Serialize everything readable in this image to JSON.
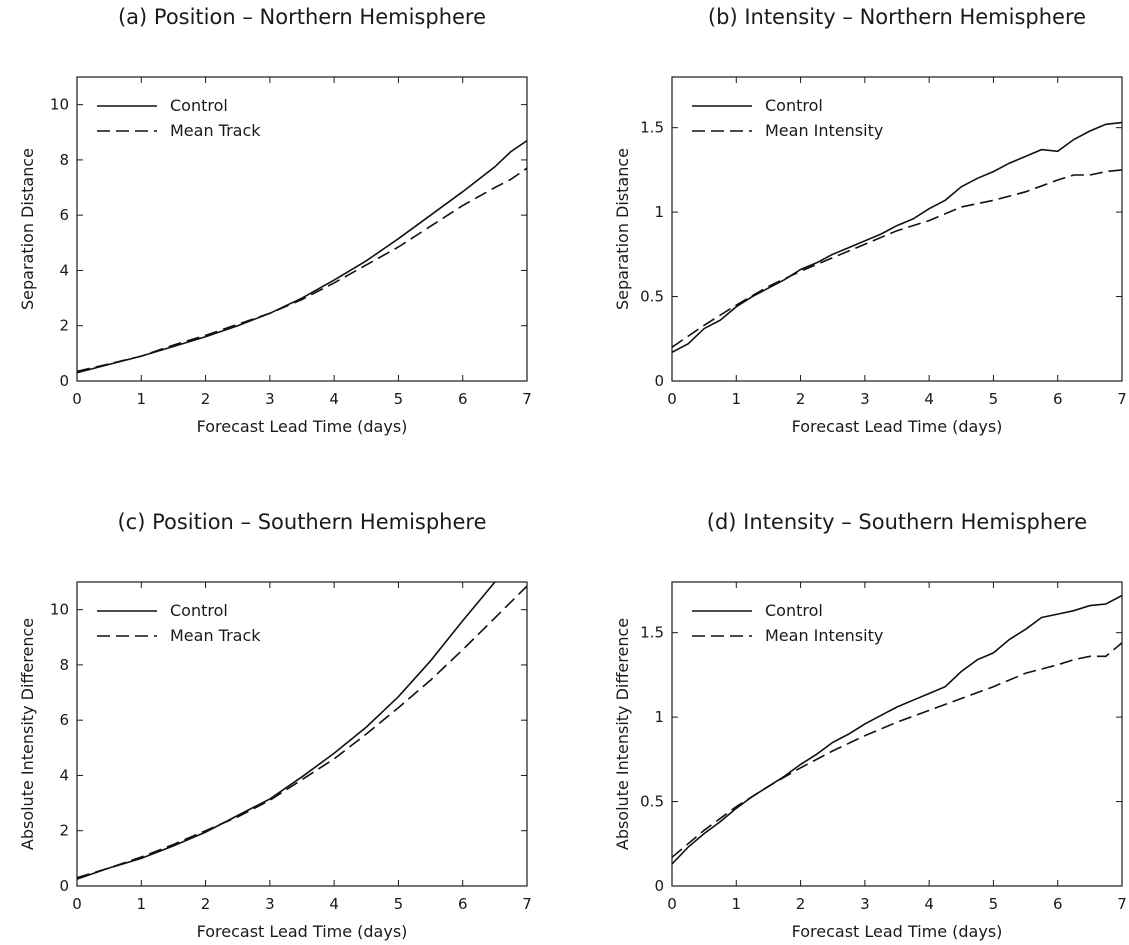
{
  "chart_data": [
    {
      "type": "line",
      "title": "(a) Position – Northern Hemisphere",
      "xlabel": "Forecast Lead Time (days)",
      "ylabel": "Separation Distance",
      "xlim": [
        0,
        7
      ],
      "ylim": [
        0,
        11
      ],
      "xticks": [
        0,
        1,
        2,
        3,
        4,
        5,
        6,
        7
      ],
      "yticks": [
        0,
        2,
        4,
        6,
        8,
        10
      ],
      "ytick_labels": [
        "0",
        "2",
        "4",
        "6",
        "8",
        "10"
      ],
      "grid": false,
      "legend": "top-left",
      "series": [
        {
          "name": "Control",
          "style": "solid",
          "x": [
            0,
            0.5,
            1,
            1.5,
            2,
            2.5,
            3,
            3.5,
            4,
            4.5,
            5,
            5.5,
            6,
            6.5,
            6.75,
            7
          ],
          "y": [
            0.3,
            0.6,
            0.9,
            1.25,
            1.6,
            2.0,
            2.45,
            3.0,
            3.65,
            4.35,
            5.15,
            6.0,
            6.85,
            7.75,
            8.3,
            8.7
          ]
        },
        {
          "name": "Mean Track",
          "style": "dashed",
          "x": [
            0,
            0.5,
            1,
            1.5,
            2,
            2.5,
            3,
            3.5,
            4,
            4.5,
            5,
            5.5,
            6,
            6.5,
            6.75,
            7
          ],
          "y": [
            0.35,
            0.62,
            0.9,
            1.3,
            1.65,
            2.05,
            2.45,
            2.95,
            3.55,
            4.2,
            4.85,
            5.6,
            6.35,
            7.0,
            7.3,
            7.7
          ]
        }
      ]
    },
    {
      "type": "line",
      "title": "(b) Intensity – Northern Hemisphere",
      "xlabel": "Forecast Lead Time (days)",
      "ylabel": "Separation Distance",
      "xlim": [
        0,
        7
      ],
      "ylim": [
        0,
        1.8
      ],
      "xticks": [
        0,
        1,
        2,
        3,
        4,
        5,
        6,
        7
      ],
      "yticks": [
        0,
        0.5,
        1,
        1.5
      ],
      "ytick_labels": [
        "0",
        "0.5",
        "1",
        "1.5"
      ],
      "grid": false,
      "legend": "top-left",
      "series": [
        {
          "name": "Control",
          "style": "solid",
          "x": [
            0,
            0.25,
            0.5,
            0.75,
            1,
            1.25,
            1.5,
            1.75,
            2,
            2.25,
            2.5,
            2.75,
            3,
            3.25,
            3.5,
            3.75,
            4,
            4.25,
            4.5,
            4.75,
            5,
            5.25,
            5.5,
            5.75,
            6,
            6.25,
            6.5,
            6.75,
            7
          ],
          "y": [
            0.17,
            0.22,
            0.31,
            0.36,
            0.44,
            0.5,
            0.55,
            0.6,
            0.66,
            0.7,
            0.75,
            0.79,
            0.83,
            0.87,
            0.92,
            0.96,
            1.02,
            1.07,
            1.15,
            1.2,
            1.24,
            1.29,
            1.33,
            1.37,
            1.36,
            1.43,
            1.48,
            1.52,
            1.53
          ]
        },
        {
          "name": "Mean Intensity",
          "style": "dashed",
          "x": [
            0,
            0.5,
            1,
            1.5,
            2,
            2.5,
            3,
            3.5,
            4,
            4.5,
            5,
            5.5,
            6,
            6.25,
            6.5,
            6.75,
            7
          ],
          "y": [
            0.2,
            0.33,
            0.45,
            0.56,
            0.65,
            0.73,
            0.81,
            0.89,
            0.95,
            1.03,
            1.07,
            1.12,
            1.19,
            1.22,
            1.22,
            1.24,
            1.25
          ]
        }
      ]
    },
    {
      "type": "line",
      "title": "(c) Position – Southern Hemisphere",
      "xlabel": "Forecast Lead Time (days)",
      "ylabel": "Absolute Intensity Difference",
      "xlim": [
        0,
        7
      ],
      "ylim": [
        0,
        11
      ],
      "xticks": [
        0,
        1,
        2,
        3,
        4,
        5,
        6,
        7
      ],
      "yticks": [
        0,
        2,
        4,
        6,
        8,
        10
      ],
      "ytick_labels": [
        "0",
        "2",
        "4",
        "6",
        "8",
        "10"
      ],
      "grid": false,
      "legend": "top-left",
      "series": [
        {
          "name": "Control",
          "style": "solid",
          "x": [
            0,
            0.5,
            1,
            1.5,
            2,
            2.5,
            3,
            3.5,
            4,
            4.5,
            5,
            5.5,
            6,
            6.5,
            6.75,
            7
          ],
          "y": [
            0.25,
            0.65,
            1.0,
            1.45,
            1.95,
            2.55,
            3.15,
            3.95,
            4.8,
            5.75,
            6.85,
            8.15,
            9.6,
            11.0,
            11.6,
            12.35
          ]
        },
        {
          "name": "Mean Track",
          "style": "dashed",
          "x": [
            0,
            0.5,
            1,
            1.5,
            2,
            2.5,
            3,
            3.5,
            4,
            4.5,
            5,
            5.5,
            6,
            6.5,
            7
          ],
          "y": [
            0.3,
            0.65,
            1.05,
            1.5,
            2.0,
            2.5,
            3.1,
            3.85,
            4.6,
            5.5,
            6.45,
            7.45,
            8.55,
            9.7,
            10.85
          ]
        }
      ]
    },
    {
      "type": "line",
      "title": "(d) Intensity – Southern Hemisphere",
      "xlabel": "Forecast Lead Time (days)",
      "ylabel": "Absolute Intensity Difference",
      "xlim": [
        0,
        7
      ],
      "ylim": [
        0,
        1.8
      ],
      "xticks": [
        0,
        1,
        2,
        3,
        4,
        5,
        6,
        7
      ],
      "yticks": [
        0,
        0.5,
        1,
        1.5
      ],
      "ytick_labels": [
        "0",
        "0.5",
        "1",
        "1.5"
      ],
      "grid": false,
      "legend": "top-left",
      "series": [
        {
          "name": "Control",
          "style": "solid",
          "x": [
            0,
            0.25,
            0.5,
            0.75,
            1,
            1.25,
            1.5,
            1.75,
            2,
            2.25,
            2.5,
            2.75,
            3,
            3.25,
            3.5,
            3.75,
            4,
            4.25,
            4.5,
            4.75,
            5,
            5.25,
            5.5,
            5.75,
            6,
            6.25,
            6.5,
            6.75,
            7
          ],
          "y": [
            0.13,
            0.23,
            0.31,
            0.38,
            0.46,
            0.53,
            0.59,
            0.65,
            0.72,
            0.78,
            0.85,
            0.9,
            0.96,
            1.01,
            1.06,
            1.1,
            1.14,
            1.18,
            1.27,
            1.34,
            1.38,
            1.46,
            1.52,
            1.59,
            1.61,
            1.63,
            1.66,
            1.67,
            1.72
          ]
        },
        {
          "name": "Mean Intensity",
          "style": "dashed",
          "x": [
            0,
            0.5,
            1,
            1.5,
            2,
            2.5,
            3,
            3.5,
            4,
            4.5,
            5,
            5.5,
            6,
            6.25,
            6.5,
            6.75,
            7
          ],
          "y": [
            0.17,
            0.33,
            0.47,
            0.59,
            0.7,
            0.8,
            0.89,
            0.97,
            1.04,
            1.11,
            1.18,
            1.26,
            1.31,
            1.34,
            1.36,
            1.36,
            1.44
          ]
        }
      ]
    }
  ]
}
